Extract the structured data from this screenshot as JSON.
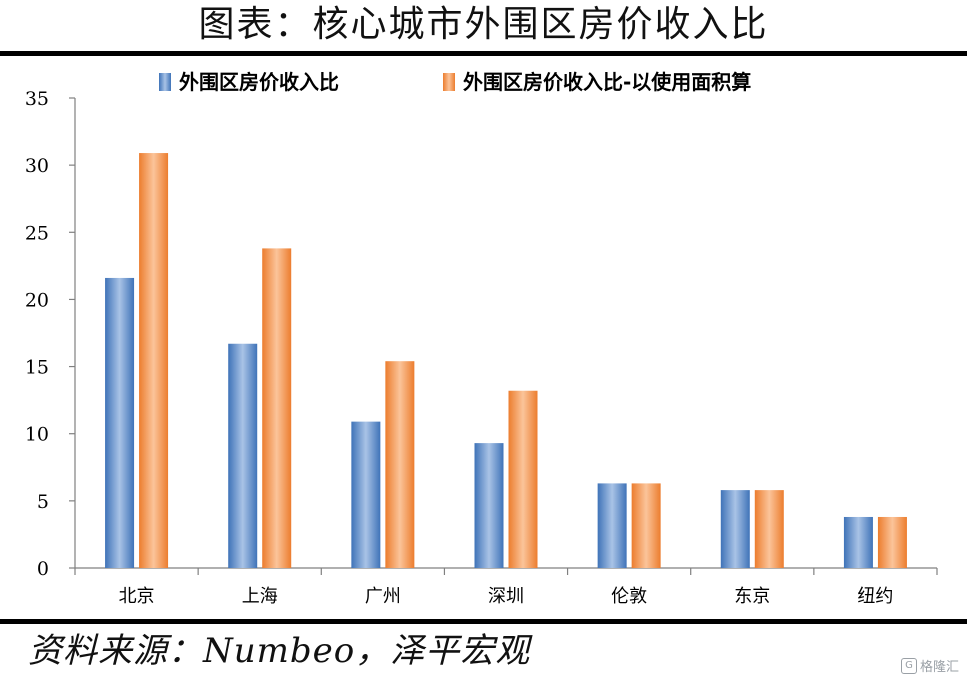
{
  "title": "图表：核心城市外围区房价收入比",
  "source": "资料来源：Numbeo，泽平宏观",
  "watermark": "格隆汇",
  "colors": {
    "series_1": "#4a7ec4",
    "series_1_light": "#a9c3e6",
    "series_2": "#f08a3c",
    "series_2_light": "#fbc49a"
  },
  "chart_data": {
    "type": "bar",
    "categories": [
      "北京",
      "上海",
      "广州",
      "深圳",
      "伦敦",
      "东京",
      "纽约"
    ],
    "series": [
      {
        "name": "外围区房价收入比",
        "values": [
          21.6,
          16.7,
          10.9,
          9.3,
          6.3,
          5.8,
          3.8
        ]
      },
      {
        "name": "外围区房价收入比-以使用面积算",
        "values": [
          30.9,
          23.8,
          15.4,
          13.2,
          6.3,
          5.8,
          3.8
        ]
      }
    ],
    "yticks": [
      "0",
      "5",
      "10",
      "15",
      "20",
      "25",
      "30",
      "35"
    ],
    "ylim": [
      0,
      35
    ],
    "grid": false,
    "legend_position": "top"
  }
}
